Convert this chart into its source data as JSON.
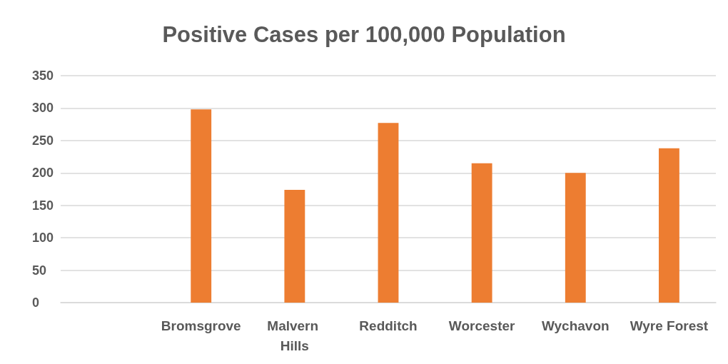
{
  "chart_data": {
    "type": "bar",
    "title": "Positive Cases per 100,000 Population",
    "categories": [
      null,
      "Bromsgrove",
      "Malvern Hills",
      "Redditch",
      "Worcester",
      "Wychavon",
      "Wyre Forest"
    ],
    "values": [
      null,
      298,
      174,
      277,
      215,
      200,
      238
    ],
    "color": "#ed7d31",
    "ylim": [
      0,
      350
    ],
    "yticks": [
      0,
      50,
      100,
      150,
      200,
      250,
      300,
      350
    ],
    "grid": "y"
  }
}
